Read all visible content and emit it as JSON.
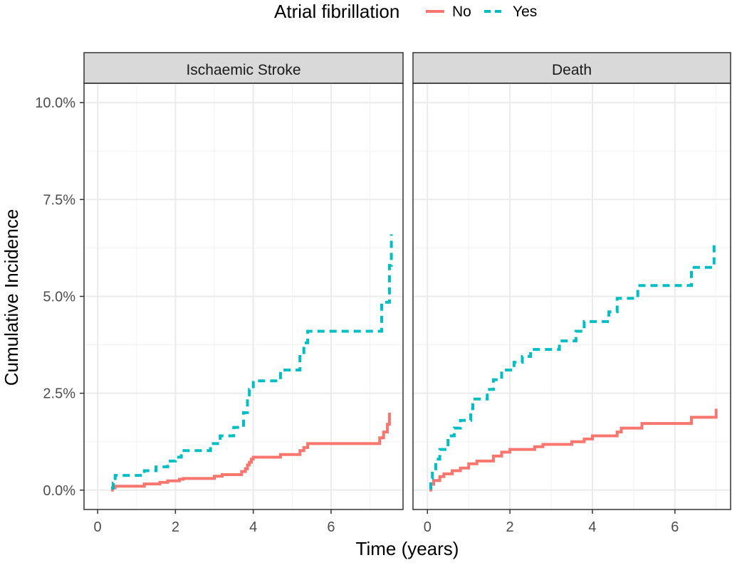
{
  "legend": {
    "title": "Atrial fibrillation",
    "items": [
      {
        "label": "No",
        "color": "#F8766D",
        "dash": "solid"
      },
      {
        "label": "Yes",
        "color": "#00BFC4",
        "dash": "dashed"
      }
    ]
  },
  "axes": {
    "xlabel": "Time (years)",
    "ylabel": "Cumulative Incidence",
    "x_ticks": [
      "0",
      "2",
      "4",
      "6"
    ],
    "y_ticks": [
      "0.0%",
      "2.5%",
      "5.0%",
      "7.5%",
      "10.0%"
    ]
  },
  "chart_data": [
    {
      "type": "line",
      "step": true,
      "facet": "Ischaemic Stroke",
      "xlim": [
        -0.35,
        7.85
      ],
      "ylim": [
        -0.5,
        10.5
      ],
      "x_ticks": [
        0,
        2,
        4,
        6
      ],
      "y_ticks": [
        0,
        2.5,
        5,
        7.5,
        10
      ],
      "series": [
        {
          "name": "No",
          "color": "#F8766D",
          "dash": "solid",
          "points": [
            [
              0.35,
              0.0
            ],
            [
              0.38,
              0.06
            ],
            [
              0.45,
              0.1
            ],
            [
              1.2,
              0.16
            ],
            [
              1.6,
              0.2
            ],
            [
              1.8,
              0.24
            ],
            [
              2.1,
              0.28
            ],
            [
              2.2,
              0.3
            ],
            [
              3.0,
              0.36
            ],
            [
              3.2,
              0.4
            ],
            [
              3.7,
              0.48
            ],
            [
              3.8,
              0.55
            ],
            [
              3.85,
              0.65
            ],
            [
              3.9,
              0.72
            ],
            [
              3.95,
              0.8
            ],
            [
              4.0,
              0.85
            ],
            [
              4.7,
              0.92
            ],
            [
              5.2,
              1.02
            ],
            [
              5.3,
              1.1
            ],
            [
              5.4,
              1.2
            ],
            [
              7.25,
              1.35
            ],
            [
              7.35,
              1.5
            ],
            [
              7.45,
              1.7
            ],
            [
              7.5,
              2.0
            ]
          ]
        },
        {
          "name": "Yes",
          "color": "#00BFC4",
          "dash": "dashed",
          "points": [
            [
              0.35,
              0.05
            ],
            [
              0.4,
              0.18
            ],
            [
              0.45,
              0.38
            ],
            [
              1.2,
              0.5
            ],
            [
              1.5,
              0.6
            ],
            [
              1.8,
              0.75
            ],
            [
              2.0,
              0.85
            ],
            [
              2.15,
              1.02
            ],
            [
              2.9,
              1.2
            ],
            [
              3.15,
              1.4
            ],
            [
              3.5,
              1.62
            ],
            [
              3.75,
              2.0
            ],
            [
              3.85,
              2.4
            ],
            [
              3.9,
              2.6
            ],
            [
              4.0,
              2.82
            ],
            [
              4.7,
              3.1
            ],
            [
              5.2,
              3.5
            ],
            [
              5.3,
              3.8
            ],
            [
              5.4,
              4.1
            ],
            [
              7.3,
              4.85
            ],
            [
              7.5,
              5.8
            ],
            [
              7.55,
              6.6
            ]
          ]
        }
      ]
    },
    {
      "type": "line",
      "step": true,
      "facet": "Death",
      "xlim": [
        -0.35,
        7.35
      ],
      "ylim": [
        -0.5,
        10.5
      ],
      "x_ticks": [
        0,
        2,
        4,
        6
      ],
      "y_ticks": [
        0,
        2.5,
        5,
        7.5,
        10
      ],
      "series": [
        {
          "name": "No",
          "color": "#F8766D",
          "dash": "solid",
          "points": [
            [
              0.05,
              0.0
            ],
            [
              0.08,
              0.15
            ],
            [
              0.15,
              0.25
            ],
            [
              0.3,
              0.35
            ],
            [
              0.4,
              0.42
            ],
            [
              0.6,
              0.5
            ],
            [
              0.8,
              0.57
            ],
            [
              1.0,
              0.68
            ],
            [
              1.2,
              0.75
            ],
            [
              1.6,
              0.88
            ],
            [
              1.8,
              0.98
            ],
            [
              2.0,
              1.05
            ],
            [
              2.6,
              1.12
            ],
            [
              2.8,
              1.18
            ],
            [
              3.5,
              1.25
            ],
            [
              3.8,
              1.32
            ],
            [
              4.0,
              1.4
            ],
            [
              4.6,
              1.5
            ],
            [
              4.7,
              1.6
            ],
            [
              5.2,
              1.72
            ],
            [
              6.4,
              1.88
            ],
            [
              7.0,
              2.1
            ]
          ]
        },
        {
          "name": "Yes",
          "color": "#00BFC4",
          "dash": "dashed",
          "points": [
            [
              0.05,
              0.05
            ],
            [
              0.08,
              0.3
            ],
            [
              0.12,
              0.55
            ],
            [
              0.2,
              0.8
            ],
            [
              0.3,
              1.05
            ],
            [
              0.5,
              1.4
            ],
            [
              0.65,
              1.6
            ],
            [
              0.8,
              1.8
            ],
            [
              1.05,
              2.1
            ],
            [
              1.1,
              2.35
            ],
            [
              1.45,
              2.6
            ],
            [
              1.6,
              2.85
            ],
            [
              1.8,
              3.1
            ],
            [
              2.1,
              3.3
            ],
            [
              2.3,
              3.45
            ],
            [
              2.5,
              3.63
            ],
            [
              3.2,
              3.85
            ],
            [
              3.6,
              4.1
            ],
            [
              3.8,
              4.35
            ],
            [
              4.4,
              4.6
            ],
            [
              4.6,
              4.95
            ],
            [
              5.1,
              5.28
            ],
            [
              6.4,
              5.75
            ],
            [
              6.95,
              6.4
            ]
          ]
        }
      ]
    }
  ]
}
